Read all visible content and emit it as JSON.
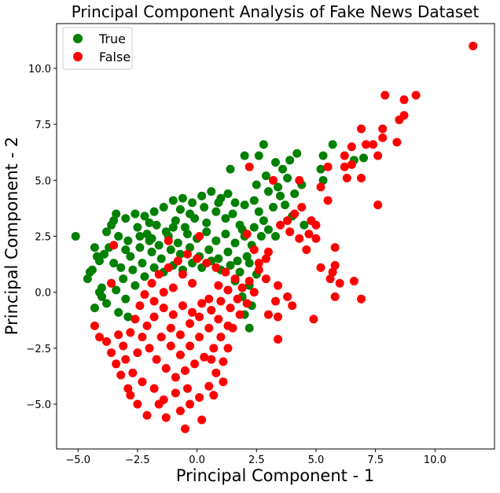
{
  "chart_data": {
    "type": "scatter",
    "title": "Principal Component Analysis of Fake News Dataset",
    "xlabel": "Principal Component - 1",
    "ylabel": "Principal Component - 2",
    "xlim": [
      -5.9,
      12.5
    ],
    "ylim": [
      -7.0,
      12.0
    ],
    "xticks": [
      -5.0,
      -2.5,
      0.0,
      2.5,
      5.0,
      7.5,
      10.0
    ],
    "xtick_labels": [
      "−5.0",
      "−2.5",
      "0.0",
      "2.5",
      "5.0",
      "7.5",
      "10.0"
    ],
    "yticks": [
      -5.0,
      -2.5,
      0.0,
      2.5,
      5.0,
      7.5,
      10.0
    ],
    "ytick_labels": [
      "−5.0",
      "−2.5",
      "0.0",
      "2.5",
      "5.0",
      "7.5",
      "10.0"
    ],
    "grid": false,
    "legend_position": "top-left",
    "series": [
      {
        "name": "True",
        "color": "#008000",
        "points": [
          [
            -5.1,
            2.5
          ],
          [
            -4.5,
            0.9
          ],
          [
            -4.6,
            0.6
          ],
          [
            -4.2,
            1.6
          ],
          [
            -4.0,
            0.2
          ],
          [
            -3.8,
            2.7
          ],
          [
            -3.6,
            3.0
          ],
          [
            -3.4,
            3.5
          ],
          [
            -3.0,
            3.3
          ],
          [
            -2.6,
            3.5
          ],
          [
            -2.2,
            3.4
          ],
          [
            -1.8,
            3.6
          ],
          [
            -1.4,
            3.8
          ],
          [
            -1.0,
            4.1
          ],
          [
            -0.6,
            4.2
          ],
          [
            -0.2,
            4.0
          ],
          [
            0.2,
            4.3
          ],
          [
            0.6,
            4.5
          ],
          [
            1.0,
            4.2
          ],
          [
            1.3,
            4.4
          ],
          [
            1.6,
            4.0
          ],
          [
            1.2,
            3.3
          ],
          [
            0.8,
            3.6
          ],
          [
            0.4,
            3.1
          ],
          [
            -0.1,
            3.3
          ],
          [
            -0.5,
            2.9
          ],
          [
            -0.9,
            3.2
          ],
          [
            -1.3,
            2.7
          ],
          [
            -1.7,
            3.0
          ],
          [
            -2.1,
            2.6
          ],
          [
            -2.5,
            2.9
          ],
          [
            -2.9,
            2.3
          ],
          [
            -3.3,
            2.5
          ],
          [
            -3.7,
            2.0
          ],
          [
            -4.1,
            1.4
          ],
          [
            -4.4,
            1.0
          ],
          [
            -4.0,
            -0.2
          ],
          [
            -3.6,
            0.4
          ],
          [
            -3.2,
            1.1
          ],
          [
            -2.8,
            1.6
          ],
          [
            -2.4,
            2.0
          ],
          [
            -2.0,
            2.3
          ],
          [
            -1.6,
            2.1
          ],
          [
            -1.2,
            2.5
          ],
          [
            -0.8,
            2.2
          ],
          [
            -0.4,
            2.6
          ],
          [
            0.0,
            2.4
          ],
          [
            0.4,
            2.7
          ],
          [
            0.8,
            2.3
          ],
          [
            1.2,
            2.6
          ],
          [
            1.6,
            2.2
          ],
          [
            2.0,
            2.5
          ],
          [
            2.3,
            2.1
          ],
          [
            2.1,
            1.6
          ],
          [
            1.7,
            1.4
          ],
          [
            1.3,
            1.8
          ],
          [
            0.9,
            1.5
          ],
          [
            0.5,
            1.9
          ],
          [
            0.1,
            1.6
          ],
          [
            -0.3,
            2.0
          ],
          [
            -0.7,
            1.7
          ],
          [
            -1.1,
            1.9
          ],
          [
            -1.5,
            1.5
          ],
          [
            -1.9,
            1.8
          ],
          [
            -2.3,
            1.3
          ],
          [
            -2.7,
            1.0
          ],
          [
            -3.1,
            0.6
          ],
          [
            -3.4,
            0.1
          ],
          [
            -3.0,
            -0.3
          ],
          [
            -2.6,
            0.3
          ],
          [
            -2.2,
            0.7
          ],
          [
            -1.8,
            1.1
          ],
          [
            -1.4,
            0.9
          ],
          [
            -1.0,
            1.2
          ],
          [
            -0.6,
            1.0
          ],
          [
            -0.2,
            1.3
          ],
          [
            0.2,
            1.1
          ],
          [
            0.6,
            1.4
          ],
          [
            1.0,
            1.0
          ],
          [
            1.4,
            1.2
          ],
          [
            1.8,
            0.9
          ],
          [
            2.2,
            1.3
          ],
          [
            2.5,
            0.8
          ],
          [
            2.2,
            0.3
          ],
          [
            1.9,
            -0.2
          ],
          [
            2.3,
            -0.6
          ],
          [
            2.0,
            -1.0
          ],
          [
            2.2,
            -1.6
          ],
          [
            1.6,
            0.5
          ],
          [
            -3.5,
            3.2
          ],
          [
            -2.0,
            3.1
          ],
          [
            -0.7,
            3.7
          ],
          [
            0.9,
            4.0
          ],
          [
            1.5,
            3.5
          ],
          [
            2.0,
            3.9
          ],
          [
            2.4,
            4.1
          ],
          [
            2.6,
            3.6
          ],
          [
            1.8,
            3.0
          ],
          [
            2.4,
            2.9
          ],
          [
            2.8,
            3.2
          ],
          [
            3.2,
            3.8
          ],
          [
            3.5,
            4.3
          ],
          [
            3.0,
            4.5
          ],
          [
            2.5,
            4.8
          ],
          [
            3.4,
            4.7
          ],
          [
            3.8,
            5.1
          ],
          [
            4.1,
            4.4
          ],
          [
            4.4,
            4.8
          ],
          [
            2.9,
            5.2
          ],
          [
            3.3,
            5.8
          ],
          [
            3.6,
            5.5
          ],
          [
            3.9,
            5.9
          ],
          [
            4.2,
            6.2
          ],
          [
            2.6,
            6.1
          ],
          [
            2.8,
            6.6
          ],
          [
            2.0,
            6.1
          ],
          [
            1.4,
            5.5
          ],
          [
            5.3,
            6.1
          ],
          [
            5.7,
            6.6
          ],
          [
            5.3,
            5.0
          ],
          [
            5.2,
            5.5
          ],
          [
            6.6,
            5.9
          ],
          [
            7.0,
            6.0
          ],
          [
            3.3,
            2.5
          ],
          [
            4.0,
            3.4
          ],
          [
            3.7,
            3.9
          ],
          [
            4.5,
            3.0
          ],
          [
            3.0,
            2.8
          ],
          [
            2.7,
            2.5
          ],
          [
            1.9,
            2.8
          ],
          [
            -4.3,
            -0.7
          ],
          [
            -3.8,
            -0.5
          ],
          [
            -3.3,
            -0.9
          ],
          [
            -2.9,
            -1.1
          ],
          [
            -1.0,
            2.9
          ],
          [
            0.3,
            3.8
          ],
          [
            -0.3,
            3.5
          ],
          [
            -1.9,
            2.4
          ],
          [
            -2.4,
            2.5
          ],
          [
            -3.0,
            1.9
          ],
          [
            -3.9,
            1.7
          ],
          [
            -4.3,
            2.0
          ],
          [
            -3.5,
            1.3
          ],
          [
            -4.1,
            0.0
          ]
        ]
      },
      {
        "name": "False",
        "color": "#ff0000",
        "points": [
          [
            11.6,
            11.0
          ],
          [
            7.9,
            8.8
          ],
          [
            9.2,
            8.8
          ],
          [
            8.7,
            8.6
          ],
          [
            8.7,
            7.9
          ],
          [
            8.5,
            7.7
          ],
          [
            7.8,
            7.3
          ],
          [
            6.9,
            7.3
          ],
          [
            8.4,
            6.7
          ],
          [
            7.8,
            6.9
          ],
          [
            7.4,
            6.6
          ],
          [
            7.6,
            6.1
          ],
          [
            7.1,
            6.6
          ],
          [
            6.5,
            6.5
          ],
          [
            6.2,
            6.1
          ],
          [
            6.5,
            5.7
          ],
          [
            6.2,
            5.6
          ],
          [
            6.9,
            5.1
          ],
          [
            6.3,
            5.1
          ],
          [
            5.5,
            5.6
          ],
          [
            5.2,
            4.7
          ],
          [
            4.3,
            5.0
          ],
          [
            3.2,
            5.0
          ],
          [
            2.2,
            5.6
          ],
          [
            7.6,
            3.9
          ],
          [
            5.5,
            4.1
          ],
          [
            5.0,
            3.0
          ],
          [
            4.8,
            3.2
          ],
          [
            4.4,
            3.8
          ],
          [
            4.1,
            3.5
          ],
          [
            3.8,
            3.2
          ],
          [
            3.5,
            3.0
          ],
          [
            3.9,
            2.7
          ],
          [
            4.3,
            2.4
          ],
          [
            4.7,
            2.6
          ],
          [
            5.0,
            2.4
          ],
          [
            4.6,
            1.9
          ],
          [
            5.8,
            2.0
          ],
          [
            5.2,
            1.1
          ],
          [
            5.7,
            0.9
          ],
          [
            5.6,
            0.6
          ],
          [
            6.0,
            0.4
          ],
          [
            6.6,
            0.5
          ],
          [
            5.8,
            1.2
          ],
          [
            5.8,
            -0.2
          ],
          [
            6.9,
            -0.3
          ],
          [
            4.9,
            -1.2
          ],
          [
            4.0,
            -0.6
          ],
          [
            3.8,
            -0.2
          ],
          [
            3.4,
            0.3
          ],
          [
            3.3,
            -0.4
          ],
          [
            3.0,
            -1.0
          ],
          [
            3.4,
            -1.1
          ],
          [
            3.4,
            -2.1
          ],
          [
            3.0,
            1.8
          ],
          [
            2.6,
            1.0
          ],
          [
            2.9,
            0.6
          ],
          [
            2.4,
            0.0
          ],
          [
            2.1,
            -0.5
          ],
          [
            1.8,
            -1.0
          ],
          [
            1.5,
            -1.6
          ],
          [
            1.3,
            -2.5
          ],
          [
            1.1,
            -3.1
          ],
          [
            0.8,
            -3.6
          ],
          [
            0.5,
            -4.2
          ],
          [
            0.1,
            -4.7
          ],
          [
            -0.3,
            -5.0
          ],
          [
            -0.7,
            -5.3
          ],
          [
            -1.3,
            -5.6
          ],
          [
            -2.1,
            -5.5
          ],
          [
            -2.5,
            -5.0
          ],
          [
            -2.9,
            -4.3
          ],
          [
            -3.2,
            -3.7
          ],
          [
            -3.4,
            -3.2
          ],
          [
            -3.6,
            -2.7
          ],
          [
            -3.8,
            -2.2
          ],
          [
            -4.1,
            -2.0
          ],
          [
            -4.3,
            -1.5
          ],
          [
            -0.5,
            -6.1
          ],
          [
            0.2,
            -5.7
          ],
          [
            -1.4,
            -4.8
          ],
          [
            -0.9,
            -4.5
          ],
          [
            -1.8,
            -4.3
          ],
          [
            -2.3,
            -4.0
          ],
          [
            -2.7,
            -3.6
          ],
          [
            -3.0,
            -3.0
          ],
          [
            -3.1,
            -2.4
          ],
          [
            -2.8,
            -1.8
          ],
          [
            -2.6,
            -1.2
          ],
          [
            -2.4,
            -0.6
          ],
          [
            -2.2,
            -0.1
          ],
          [
            -1.9,
            0.4
          ],
          [
            -1.6,
            0.8
          ],
          [
            -1.2,
            1.1
          ],
          [
            -0.8,
            1.4
          ],
          [
            -0.4,
            1.7
          ],
          [
            0.0,
            1.5
          ],
          [
            0.4,
            1.3
          ],
          [
            0.8,
            1.1
          ],
          [
            1.2,
            0.9
          ],
          [
            1.6,
            0.6
          ],
          [
            1.9,
            0.2
          ],
          [
            2.2,
            0.5
          ],
          [
            1.7,
            -0.3
          ],
          [
            1.4,
            -0.7
          ],
          [
            1.0,
            -0.4
          ],
          [
            0.6,
            -0.8
          ],
          [
            0.2,
            -0.5
          ],
          [
            -0.2,
            -0.9
          ],
          [
            -0.6,
            -0.6
          ],
          [
            -1.0,
            -1.0
          ],
          [
            -1.4,
            -0.7
          ],
          [
            -1.8,
            -1.1
          ],
          [
            -2.1,
            -1.5
          ],
          [
            -2.3,
            -2.0
          ],
          [
            -2.0,
            -2.5
          ],
          [
            -1.7,
            -3.0
          ],
          [
            -1.3,
            -3.4
          ],
          [
            -0.9,
            -3.8
          ],
          [
            -0.5,
            -3.5
          ],
          [
            -0.1,
            -3.2
          ],
          [
            0.3,
            -2.9
          ],
          [
            0.7,
            -2.5
          ],
          [
            1.0,
            -2.0
          ],
          [
            1.3,
            -1.5
          ],
          [
            0.9,
            -1.2
          ],
          [
            0.5,
            -1.6
          ],
          [
            0.1,
            -2.0
          ],
          [
            -0.3,
            -2.4
          ],
          [
            -0.7,
            -2.8
          ],
          [
            -1.1,
            -2.4
          ],
          [
            -1.5,
            -2.0
          ],
          [
            -1.1,
            -1.6
          ],
          [
            -0.7,
            -1.9
          ],
          [
            -0.3,
            -1.4
          ],
          [
            0.1,
            -1.1
          ],
          [
            0.5,
            -0.3
          ],
          [
            0.9,
            0.3
          ],
          [
            1.3,
            0.1
          ],
          [
            -0.2,
            0.4
          ],
          [
            -0.6,
            0.8
          ],
          [
            -1.0,
            0.2
          ],
          [
            -1.4,
            0.0
          ],
          [
            -1.8,
            -0.4
          ],
          [
            -1.2,
            2.3
          ],
          [
            0.1,
            2.5
          ],
          [
            -3.5,
            2.1
          ],
          [
            -3.6,
            0.4
          ],
          [
            2.1,
            2.6
          ],
          [
            2.4,
            1.9
          ],
          [
            2.6,
            1.3
          ],
          [
            2.9,
            1.5
          ],
          [
            -2.8,
            -4.6
          ],
          [
            -1.6,
            -5.0
          ],
          [
            0.7,
            -4.6
          ],
          [
            1.1,
            -4.0
          ],
          [
            0.6,
            -3.0
          ],
          [
            -3.3,
            -1.9
          ],
          [
            -2.5,
            -2.7
          ],
          [
            -0.4,
            -4.3
          ]
        ]
      }
    ]
  }
}
